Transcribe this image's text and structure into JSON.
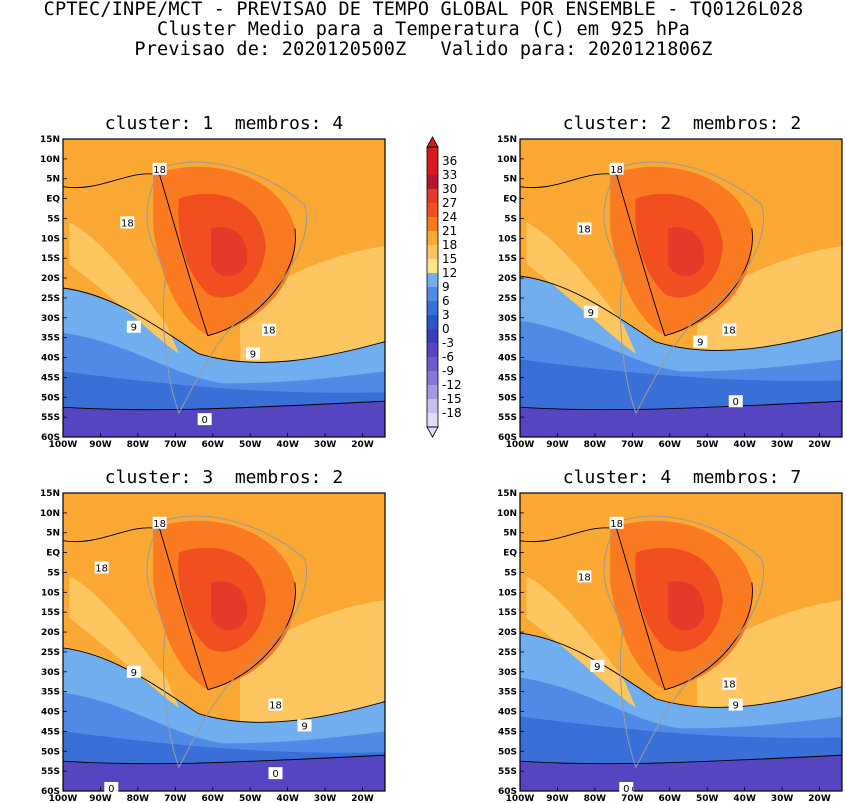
{
  "header": {
    "line1": "CPTEC/INPE/MCT - PREVISAO DE TEMPO GLOBAL POR ENSEMBLE - TQ0126L028",
    "line2": "Cluster Medio para a Temperatura (C) em 925 hPa",
    "line3": "Previsao de: 2020120500Z   Valido para: 2020121806Z"
  },
  "chart_data": [
    {
      "type": "heatmap",
      "title": "cluster: 1  membros: 4",
      "x_ticks": [
        "100W",
        "90W",
        "80W",
        "70W",
        "60W",
        "50W",
        "40W",
        "30W",
        "20W"
      ],
      "y_ticks": [
        "15N",
        "10N",
        "5N",
        "EQ",
        "5S",
        "10S",
        "15S",
        "20S",
        "25S",
        "30S",
        "35S",
        "40S",
        "45S",
        "50S",
        "55S",
        "60S"
      ],
      "xlim": [
        -100,
        -14
      ],
      "ylim": [
        -60,
        15
      ],
      "contour_labels": [
        "18",
        "18",
        "9",
        "18",
        "9",
        "0"
      ]
    },
    {
      "type": "heatmap",
      "title": "cluster: 2  membros: 2",
      "x_ticks": [
        "100W",
        "90W",
        "80W",
        "70W",
        "60W",
        "50W",
        "40W",
        "30W",
        "20W"
      ],
      "y_ticks": [
        "15N",
        "10N",
        "5N",
        "EQ",
        "5S",
        "10S",
        "15S",
        "20S",
        "25S",
        "30S",
        "35S",
        "40S",
        "45S",
        "50S",
        "55S",
        "60S"
      ],
      "xlim": [
        -100,
        -14
      ],
      "ylim": [
        -60,
        15
      ],
      "contour_labels": [
        "18",
        "18",
        "9",
        "18",
        "9",
        "0"
      ]
    },
    {
      "type": "heatmap",
      "title": "cluster: 3  membros: 2",
      "x_ticks": [
        "100W",
        "90W",
        "80W",
        "70W",
        "60W",
        "50W",
        "40W",
        "30W",
        "20W"
      ],
      "y_ticks": [
        "15N",
        "10N",
        "5N",
        "EQ",
        "5S",
        "10S",
        "15S",
        "20S",
        "25S",
        "30S",
        "35S",
        "40S",
        "45S",
        "50S",
        "55S",
        "60S"
      ],
      "xlim": [
        -100,
        -14
      ],
      "ylim": [
        -60,
        15
      ],
      "contour_labels": [
        "18",
        "18",
        "9",
        "18",
        "9",
        "0",
        "0"
      ]
    },
    {
      "type": "heatmap",
      "title": "cluster: 4  membros: 7",
      "x_ticks": [
        "100W",
        "90W",
        "80W",
        "70W",
        "60W",
        "50W",
        "40W",
        "30W",
        "20W"
      ],
      "y_ticks": [
        "15N",
        "10N",
        "5N",
        "EQ",
        "5S",
        "10S",
        "15S",
        "20S",
        "25S",
        "30S",
        "35S",
        "40S",
        "45S",
        "50S",
        "55S",
        "60S"
      ],
      "xlim": [
        -100,
        -14
      ],
      "ylim": [
        -60,
        15
      ],
      "contour_labels": [
        "18",
        "18",
        "9",
        "18",
        "9",
        "0"
      ]
    }
  ],
  "colorbar": {
    "labels": [
      "36",
      "33",
      "30",
      "27",
      "24",
      "21",
      "18",
      "15",
      "12",
      "9",
      "6",
      "3",
      "0",
      "-3",
      "-6",
      "-9",
      "-12",
      "-15",
      "-18"
    ],
    "colors": [
      "#d7191c",
      "#d7191c",
      "#b2182b",
      "#e53a2a",
      "#f14f20",
      "#f97a20",
      "#fba934",
      "#fdc661",
      "#fde68a",
      "#70aef0",
      "#4f8be6",
      "#3a6fd8",
      "#2a55c8",
      "#3a3fb8",
      "#5645c0",
      "#6f59cc",
      "#8a75d8",
      "#a898e4",
      "#c7bff0",
      "#e2dcf8"
    ]
  }
}
